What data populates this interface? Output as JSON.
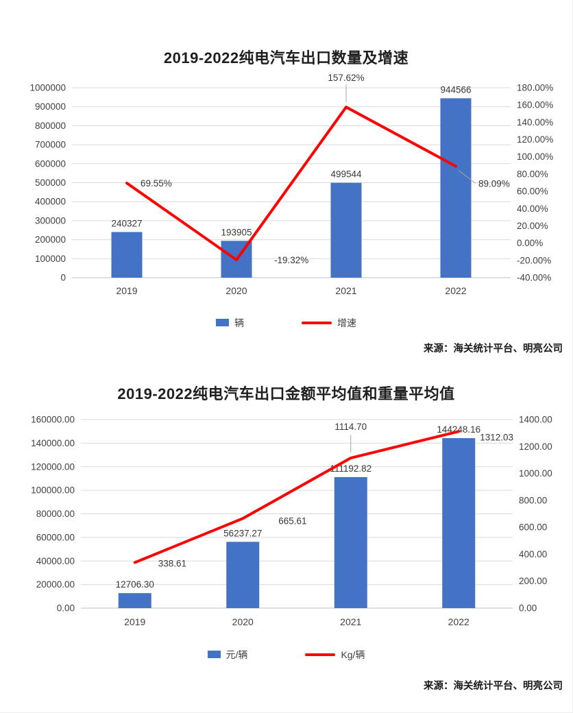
{
  "page": {
    "background": "#ffffff"
  },
  "chart_data": [
    {
      "type": "bar+line",
      "title": "2019-2022纯电汽车出口数量及增速",
      "categories": [
        "2019",
        "2020",
        "2021",
        "2022"
      ],
      "series": [
        {
          "name": "辆",
          "type": "bar",
          "axis": "left",
          "values": [
            240327,
            193905,
            499544,
            944566
          ],
          "labels": [
            "240327",
            "193905",
            "499544",
            "944566"
          ]
        },
        {
          "name": "增速",
          "type": "line",
          "axis": "right",
          "values": [
            69.55,
            -19.32,
            157.62,
            89.09
          ],
          "labels": [
            "69.55%",
            "-19.32%",
            "157.62%",
            "89.09%"
          ]
        }
      ],
      "left_axis": {
        "min": 0,
        "max": 1000000,
        "ticks": [
          "1000000",
          "900000",
          "800000",
          "700000",
          "600000",
          "500000",
          "400000",
          "300000",
          "200000",
          "100000",
          "0"
        ]
      },
      "right_axis": {
        "min": -40,
        "max": 180,
        "ticks": [
          "180.00%",
          "160.00%",
          "140.00%",
          "120.00%",
          "100.00%",
          "80.00%",
          "60.00%",
          "40.00%",
          "20.00%",
          "0.00%",
          "-20.00%",
          "-40.00%"
        ]
      },
      "grid": true,
      "legend_position": "bottom",
      "colors": {
        "bar": "#4472C4",
        "line": "#FF0000",
        "grid": "#d9d9d9",
        "axis": "#bfbfbf"
      },
      "source": "来源：海关统计平台、明亮公司"
    },
    {
      "type": "bar+line",
      "title": "2019-2022纯电汽车出口金额平均值和重量平均值",
      "categories": [
        "2019",
        "2020",
        "2021",
        "2022"
      ],
      "series": [
        {
          "name": "元/辆",
          "type": "bar",
          "axis": "left",
          "values": [
            12706.3,
            56237.27,
            111192.82,
            144248.16
          ],
          "labels": [
            "12706.30",
            "56237.27",
            "111192.82",
            "144248.16"
          ]
        },
        {
          "name": "Kg/辆",
          "type": "line",
          "axis": "right",
          "values": [
            338.61,
            665.61,
            1114.7,
            1312.03
          ],
          "labels": [
            "338.61",
            "665.61",
            "1114.70",
            "1312.03"
          ]
        }
      ],
      "left_axis": {
        "min": 0,
        "max": 160000,
        "ticks": [
          "160000.00",
          "140000.00",
          "120000.00",
          "100000.00",
          "80000.00",
          "60000.00",
          "40000.00",
          "20000.00",
          "0.00"
        ]
      },
      "right_axis": {
        "min": 0,
        "max": 1400,
        "ticks": [
          "1400.00",
          "1200.00",
          "1000.00",
          "800.00",
          "600.00",
          "400.00",
          "200.00",
          "0.00"
        ]
      },
      "grid": true,
      "legend_position": "bottom",
      "colors": {
        "bar": "#4472C4",
        "line": "#FF0000",
        "grid": "#d9d9d9",
        "axis": "#bfbfbf"
      },
      "source": "来源：海关统计平台、明亮公司"
    }
  ]
}
